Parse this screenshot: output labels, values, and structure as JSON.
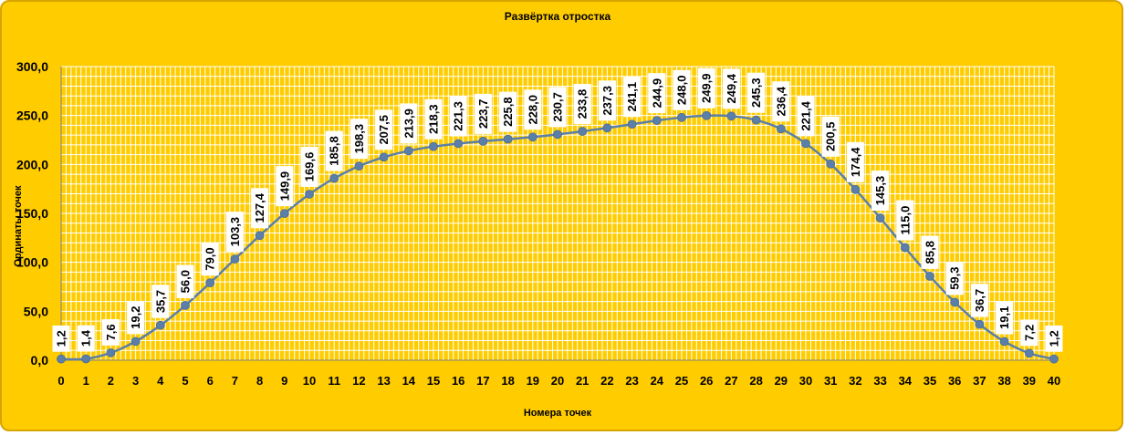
{
  "chart_data": {
    "type": "line",
    "title": "Развёртка отростка",
    "xlabel": "Номера точек",
    "ylabel": "Ординаты точек",
    "x": [
      0,
      1,
      2,
      3,
      4,
      5,
      6,
      7,
      8,
      9,
      10,
      11,
      12,
      13,
      14,
      15,
      16,
      17,
      18,
      19,
      20,
      21,
      22,
      23,
      24,
      25,
      26,
      27,
      28,
      29,
      30,
      31,
      32,
      33,
      34,
      35,
      36,
      37,
      38,
      39,
      40
    ],
    "series": [
      {
        "values": [
          1.2,
          1.4,
          7.6,
          19.2,
          35.7,
          56.0,
          79.0,
          103.3,
          127.4,
          149.9,
          169.6,
          185.8,
          198.3,
          207.5,
          213.9,
          218.3,
          221.3,
          223.7,
          225.8,
          228.0,
          230.7,
          233.8,
          237.3,
          241.1,
          244.9,
          248.0,
          249.9,
          249.4,
          245.3,
          236.4,
          221.4,
          200.5,
          174.4,
          145.3,
          115.0,
          85.8,
          59.3,
          36.7,
          19.1,
          7.2,
          1.2
        ],
        "labels": [
          "1,2",
          "1,4",
          "7,6",
          "19,2",
          "35,7",
          "56,0",
          "79,0",
          "103,3",
          "127,4",
          "149,9",
          "169,6",
          "185,8",
          "198,3",
          "207,5",
          "213,9",
          "218,3",
          "221,3",
          "223,7",
          "225,8",
          "228,0",
          "230,7",
          "233,8",
          "237,3",
          "241,1",
          "244,9",
          "248,0",
          "249,9",
          "249,4",
          "245,3",
          "236,4",
          "221,4",
          "200,5",
          "174,4",
          "145,3",
          "115,0",
          "85,8",
          "59,3",
          "36,7",
          "19,1",
          "7,2",
          "1,2"
        ]
      }
    ],
    "yticks": [
      "0,0",
      "50,0",
      "100,0",
      "150,0",
      "200,0",
      "250,0",
      "300,0"
    ],
    "ylim": [
      0,
      300
    ],
    "xlim": [
      0,
      40
    ],
    "grid": true,
    "line_color": "#5b7fa8",
    "marker_color": "#5b7fa8",
    "background_color": "#ffcc00",
    "grid_color": "#ffffff"
  }
}
